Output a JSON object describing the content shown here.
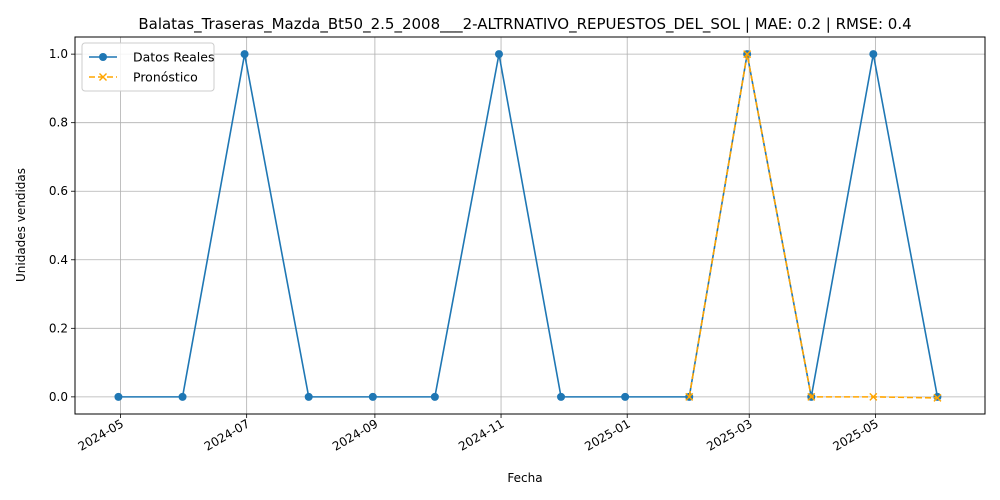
{
  "chart_data": {
    "type": "line",
    "title": "Balatas_Traseras_Mazda_Bt50_2.5_2008___2-ALTRNATIVO_REPUESTOS_DEL_SOL | MAE: 0.2 | RMSE: 0.4",
    "xlabel": "Fecha",
    "ylabel": "Unidades vendidas",
    "xlim": [
      "2024-04-09",
      "2025-06-23"
    ],
    "ylim": [
      -0.05,
      1.05
    ],
    "x_ticks": [
      "2024-05",
      "2024-07",
      "2024-09",
      "2024-11",
      "2025-01",
      "2025-03",
      "2025-05"
    ],
    "x_tick_dates": [
      "2024-05-01",
      "2024-07-01",
      "2024-09-01",
      "2024-11-01",
      "2025-01-01",
      "2025-03-01",
      "2025-05-01"
    ],
    "y_ticks": [
      "0.0",
      "0.2",
      "0.4",
      "0.6",
      "0.8",
      "1.0"
    ],
    "y_tick_values": [
      0,
      0.2,
      0.4,
      0.6,
      0.8,
      1.0
    ],
    "grid": true,
    "legend_position": "top-left",
    "series": [
      {
        "name": "Datos Reales",
        "color": "#1f77b4",
        "style": "solid",
        "marker": "circle",
        "x": [
          "2024-04-30",
          "2024-05-31",
          "2024-06-30",
          "2024-07-31",
          "2024-08-31",
          "2024-09-30",
          "2024-10-31",
          "2024-11-30",
          "2024-12-31",
          "2025-01-31",
          "2025-02-28",
          "2025-03-31",
          "2025-04-30",
          "2025-05-31"
        ],
        "values": [
          0,
          0,
          1,
          0,
          0,
          0,
          1,
          0,
          0,
          0,
          1,
          0,
          1,
          0
        ]
      },
      {
        "name": "Pronóstico",
        "color": "#ffa500",
        "style": "dashed",
        "marker": "x",
        "x": [
          "2025-01-31",
          "2025-02-28",
          "2025-03-31",
          "2025-04-30",
          "2025-05-31"
        ],
        "values": [
          0,
          1,
          0,
          0,
          -0.003
        ]
      }
    ]
  }
}
